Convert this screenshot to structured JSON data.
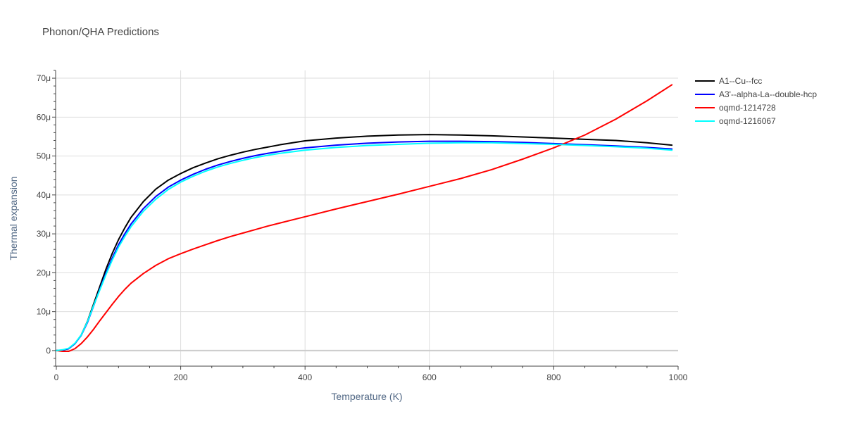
{
  "chart_data": {
    "type": "line",
    "title": "Phonon/QHA Predictions",
    "xlabel": "Temperature (K)",
    "ylabel": "Thermal expansion",
    "xlim": [
      0,
      1000
    ],
    "ylim": [
      -4,
      72
    ],
    "x_ticks": [
      0,
      200,
      400,
      600,
      800,
      1000
    ],
    "y_ticks": [
      0,
      10,
      20,
      30,
      40,
      50,
      60,
      70
    ],
    "y_tick_labels": [
      "0",
      "10μ",
      "20μ",
      "30μ",
      "40μ",
      "50μ",
      "60μ",
      "70μ"
    ],
    "y_unit_scale": "micro (1e-6 per K)",
    "grid": true,
    "legend_position": "top-right outside",
    "series": [
      {
        "name": "A1--Cu--fcc",
        "color": "#000000",
        "x": [
          0,
          10,
          20,
          30,
          40,
          50,
          60,
          70,
          80,
          90,
          100,
          110,
          120,
          140,
          160,
          180,
          200,
          220,
          240,
          260,
          280,
          300,
          320,
          340,
          360,
          380,
          400,
          450,
          500,
          550,
          600,
          650,
          700,
          750,
          800,
          850,
          900,
          950,
          990
        ],
        "y": [
          0,
          0.1,
          0.5,
          1.8,
          4.0,
          7.5,
          12.0,
          16.5,
          21.0,
          25.0,
          28.5,
          31.5,
          34.2,
          38.3,
          41.5,
          43.8,
          45.5,
          47.0,
          48.2,
          49.3,
          50.2,
          51.0,
          51.7,
          52.3,
          52.9,
          53.4,
          53.9,
          54.6,
          55.1,
          55.4,
          55.5,
          55.4,
          55.2,
          54.9,
          54.6,
          54.3,
          54.0,
          53.4,
          52.8
        ]
      },
      {
        "name": "A3'--alpha-La--double-hcp",
        "color": "#0000ff",
        "x": [
          0,
          10,
          20,
          30,
          40,
          50,
          60,
          70,
          80,
          90,
          100,
          110,
          120,
          140,
          160,
          180,
          200,
          220,
          240,
          260,
          280,
          300,
          320,
          340,
          360,
          380,
          400,
          450,
          500,
          550,
          600,
          650,
          700,
          750,
          800,
          850,
          900,
          950,
          990
        ],
        "y": [
          0,
          0.1,
          0.5,
          1.8,
          3.9,
          7.2,
          11.5,
          15.8,
          20.0,
          23.8,
          27.2,
          30.0,
          32.5,
          36.5,
          39.6,
          42.0,
          43.8,
          45.3,
          46.6,
          47.7,
          48.6,
          49.4,
          50.1,
          50.7,
          51.2,
          51.7,
          52.1,
          52.8,
          53.3,
          53.6,
          53.8,
          53.8,
          53.7,
          53.5,
          53.2,
          52.9,
          52.6,
          52.2,
          51.8
        ]
      },
      {
        "name": "oqmd-1214728",
        "color": "#ff0000",
        "x": [
          0,
          10,
          20,
          30,
          40,
          50,
          60,
          70,
          80,
          90,
          100,
          110,
          120,
          140,
          160,
          180,
          200,
          220,
          240,
          260,
          280,
          300,
          320,
          340,
          360,
          380,
          400,
          450,
          500,
          550,
          600,
          650,
          700,
          750,
          800,
          850,
          900,
          950,
          990
        ],
        "y": [
          0,
          -0.2,
          -0.2,
          0.5,
          1.8,
          3.5,
          5.5,
          7.7,
          9.8,
          11.9,
          13.9,
          15.7,
          17.3,
          19.8,
          21.9,
          23.6,
          24.9,
          26.1,
          27.2,
          28.3,
          29.3,
          30.2,
          31.1,
          32.0,
          32.8,
          33.6,
          34.4,
          36.4,
          38.3,
          40.2,
          42.2,
          44.2,
          46.5,
          49.2,
          52.1,
          55.4,
          59.5,
          64.2,
          68.3
        ]
      },
      {
        "name": "oqmd-1216067",
        "color": "#00ffff",
        "x": [
          0,
          10,
          20,
          30,
          40,
          50,
          60,
          70,
          80,
          90,
          100,
          110,
          120,
          140,
          160,
          180,
          200,
          220,
          240,
          260,
          280,
          300,
          320,
          340,
          360,
          380,
          400,
          450,
          500,
          550,
          600,
          650,
          700,
          750,
          800,
          850,
          900,
          950,
          990
        ],
        "y": [
          0,
          0.2,
          0.6,
          1.9,
          4.0,
          7.4,
          11.6,
          15.6,
          19.6,
          23.3,
          26.6,
          29.3,
          31.8,
          35.8,
          38.9,
          41.4,
          43.3,
          44.8,
          46.1,
          47.2,
          48.1,
          48.9,
          49.6,
          50.2,
          50.7,
          51.1,
          51.5,
          52.2,
          52.7,
          53.0,
          53.3,
          53.4,
          53.4,
          53.2,
          53.0,
          52.7,
          52.4,
          52.0,
          51.5
        ]
      }
    ]
  }
}
